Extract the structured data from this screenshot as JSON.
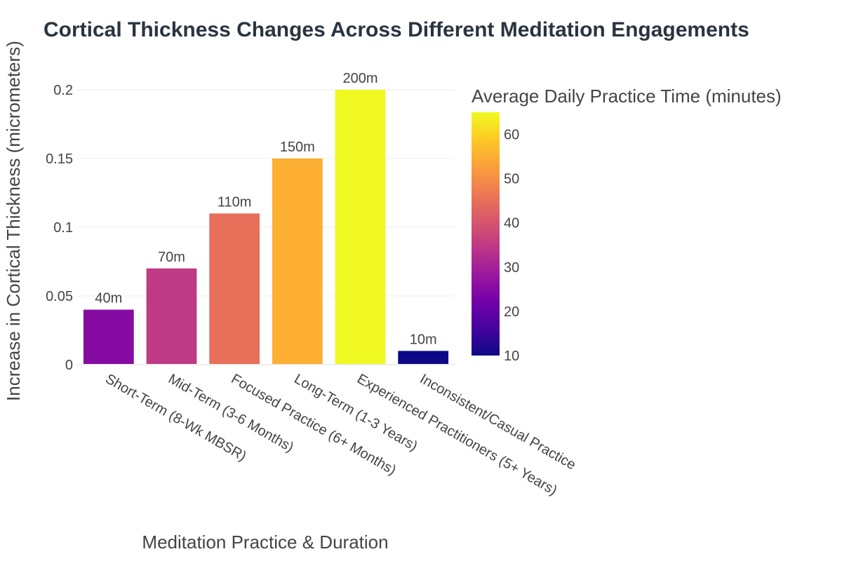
{
  "chart_data": {
    "type": "bar",
    "title": "Cortical Thickness Changes Across Different Meditation Engagements",
    "xlabel": "Meditation Practice & Duration",
    "ylabel": "Increase in Cortical Thickness (micrometers)",
    "ylim": [
      0,
      0.2
    ],
    "yticks": [
      0,
      0.05,
      0.1,
      0.15,
      0.2
    ],
    "ytick_labels": [
      "0",
      "0.05",
      "0.1",
      "0.15",
      "0.2"
    ],
    "grid": true,
    "categories": [
      "Short-Term (8-Wk MBSR)",
      "Mid-Term (3-6 Months)",
      "Focused Practice (6+ Months)",
      "Long-Term (1-3 Years)",
      "Experienced Practitioners (5+ Years)",
      "Inconsistent/Casual Practice"
    ],
    "values": [
      0.04,
      0.07,
      0.11,
      0.15,
      0.2,
      0.01
    ],
    "daily_minutes": [
      25,
      35,
      45,
      55,
      65,
      10
    ],
    "data_labels": [
      "40m",
      "70m",
      "110m",
      "150m",
      "200m",
      "10m"
    ],
    "colorbar": {
      "title": "Average Daily Practice Time (minutes)",
      "range": [
        10,
        65
      ],
      "ticks": [
        10,
        20,
        30,
        40,
        50,
        60
      ],
      "tick_labels": [
        "10",
        "20",
        "30",
        "40",
        "50",
        "60"
      ],
      "colorscale": [
        "#0d0887",
        "#46039f",
        "#7201a8",
        "#9c179e",
        "#bd3786",
        "#d8576b",
        "#ed7953",
        "#fb9f3a",
        "#fdca26",
        "#f0f921"
      ]
    }
  }
}
